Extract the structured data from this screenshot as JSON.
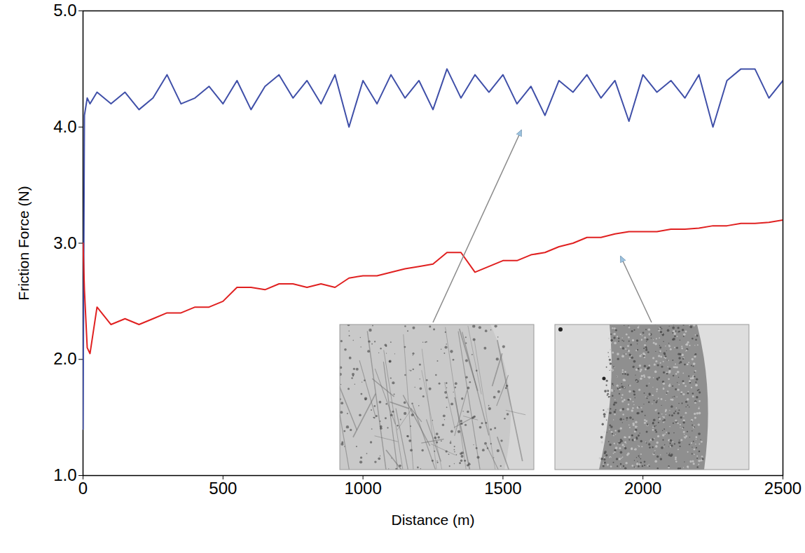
{
  "chart_data": {
    "type": "line",
    "x_label": "Distance (m)",
    "y_label": "Friction Force (N)",
    "xlim": [
      0,
      2500
    ],
    "ylim": [
      1,
      5
    ],
    "xticks": [
      0,
      500,
      1000,
      1500,
      2000,
      2500
    ],
    "yticks": [
      {
        "value": 1,
        "label": "1.0"
      },
      {
        "value": 2,
        "label": "2.0"
      },
      {
        "value": 3,
        "label": "3.0"
      },
      {
        "value": 4,
        "label": "4.0"
      },
      {
        "value": 5,
        "label": "5.0"
      }
    ],
    "grid": false,
    "x": [
      0,
      5,
      15,
      25,
      50,
      100,
      150,
      200,
      250,
      300,
      350,
      400,
      450,
      500,
      550,
      600,
      650,
      700,
      750,
      800,
      850,
      900,
      950,
      1000,
      1050,
      1100,
      1150,
      1200,
      1250,
      1300,
      1350,
      1400,
      1450,
      1500,
      1550,
      1600,
      1650,
      1700,
      1750,
      1800,
      1850,
      1900,
      1950,
      2000,
      2050,
      2100,
      2150,
      2200,
      2250,
      2300,
      2350,
      2400,
      2450,
      2500
    ],
    "series": [
      {
        "color": "#3f4fa8",
        "values": [
          1.4,
          4.1,
          4.25,
          4.2,
          4.3,
          4.2,
          4.3,
          4.15,
          4.25,
          4.45,
          4.2,
          4.25,
          4.35,
          4.2,
          4.4,
          4.15,
          4.35,
          4.45,
          4.25,
          4.4,
          4.2,
          4.45,
          4.0,
          4.4,
          4.2,
          4.45,
          4.25,
          4.4,
          4.15,
          4.5,
          4.25,
          4.45,
          4.3,
          4.45,
          4.2,
          4.35,
          4.1,
          4.4,
          4.3,
          4.45,
          4.25,
          4.4,
          4.05,
          4.45,
          4.3,
          4.4,
          4.25,
          4.45,
          4.0,
          4.4,
          4.5,
          4.5,
          4.25,
          4.4
        ]
      },
      {
        "color": "#e02020",
        "values": [
          3.0,
          2.6,
          2.1,
          2.05,
          2.45,
          2.3,
          2.35,
          2.3,
          2.35,
          2.4,
          2.4,
          2.45,
          2.45,
          2.5,
          2.62,
          2.62,
          2.6,
          2.65,
          2.65,
          2.62,
          2.65,
          2.62,
          2.7,
          2.72,
          2.72,
          2.75,
          2.78,
          2.8,
          2.82,
          2.92,
          2.92,
          2.75,
          2.8,
          2.85,
          2.85,
          2.9,
          2.92,
          2.97,
          3.0,
          3.05,
          3.05,
          3.08,
          3.1,
          3.1,
          3.1,
          3.12,
          3.12,
          3.13,
          3.15,
          3.15,
          3.17,
          3.17,
          3.18,
          3.2
        ]
      }
    ]
  }
}
